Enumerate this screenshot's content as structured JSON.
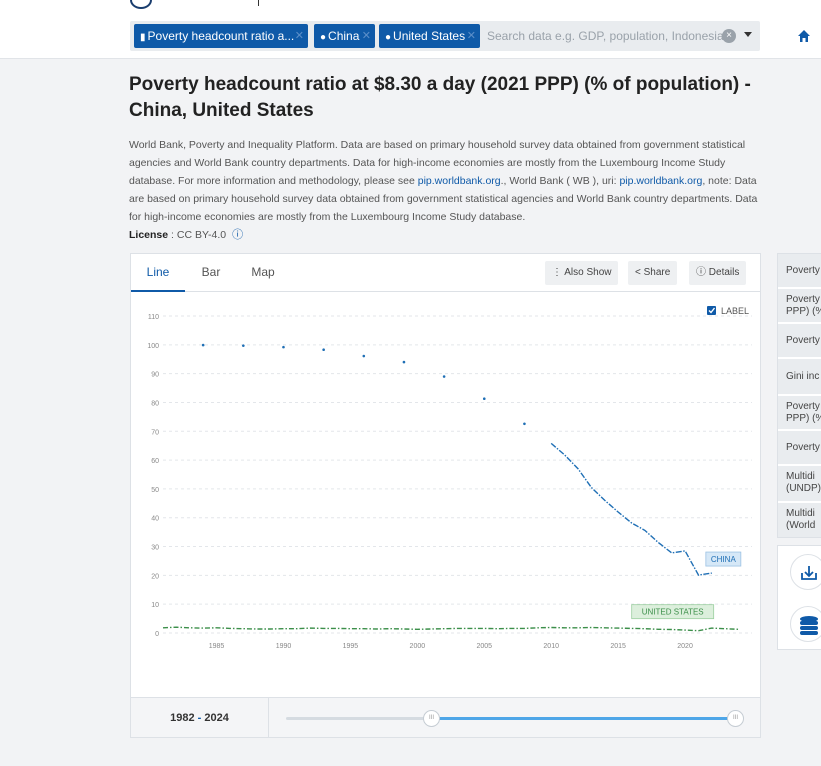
{
  "header": {
    "chips": [
      {
        "label": "Poverty headcount ratio a...",
        "icon": "bar-chart-icon"
      },
      {
        "label": "China",
        "icon": "map-pin-icon"
      },
      {
        "label": "United States",
        "icon": "map-pin-icon"
      }
    ],
    "search_placeholder": "Search data e.g. GDP, population, Indonesia",
    "clear_symbol": "×"
  },
  "page": {
    "title": "Poverty headcount ratio at $8.30 a day (2021 PPP) (% of population) - China, United States",
    "desc_1": "World Bank, Poverty and Inequality Platform. Data are based on primary household survey data obtained from government statistical agencies and World Bank country departments. Data for high-income economies are mostly from the Luxembourg Income Study database. For more information and methodology, please see ",
    "desc_link_1": "pip.worldbank.org",
    "desc_2": "., World Bank ( WB ), uri: ",
    "desc_link_2": "pip.worldbank.org",
    "desc_3": ", note: Data are based on primary household survey data obtained from government statistical agencies and World Bank country departments. Data for high-income economies are mostly from the Luxembourg Income Study database.",
    "license_label": "License",
    "license_value": " : CC BY-4.0",
    "license_info_symbol": "ⓘ"
  },
  "panel": {
    "tabs": [
      "Line",
      "Bar",
      "Map"
    ],
    "active_tab": "Line",
    "also_show": "Also Show",
    "share": "Share",
    "details": "Details",
    "label_toggle": "LABEL",
    "label_checked": true,
    "year_start": "1982",
    "year_sep": "-",
    "year_end": "2024",
    "handle_symbol": "III"
  },
  "sidebar": {
    "items": [
      "Poverty",
      "Poverty PPP) (%",
      "Poverty",
      "Gini inc",
      "Poverty PPP) (%",
      "Poverty",
      "Multidi (UNDP)",
      "Multidi (World"
    ]
  },
  "colors": {
    "brand": "#0f5aa8",
    "china": "#1f6fb5",
    "us": "#3c8f4a",
    "china_label_bg": "#d6e8f7",
    "us_label_bg": "#dcefdc"
  },
  "chart_data": {
    "type": "line",
    "title": "",
    "xlabel": "",
    "ylabel": "",
    "xlim": [
      1981,
      2025
    ],
    "ylim": [
      0,
      110
    ],
    "yticks": [
      0,
      10,
      20,
      30,
      40,
      50,
      60,
      70,
      80,
      90,
      100,
      110
    ],
    "xticks": [
      1985,
      1990,
      1995,
      2000,
      2005,
      2010,
      2015,
      2020
    ],
    "grid": true,
    "series": [
      {
        "name": "CHINA",
        "color": "#1f6fb5",
        "points": [
          [
            1984,
            99.9
          ],
          [
            1987,
            99.7
          ],
          [
            1990,
            99.2
          ],
          [
            1993,
            98.3
          ],
          [
            1996,
            96.1
          ],
          [
            1999,
            94.0
          ],
          [
            2002,
            89.0
          ],
          [
            2005,
            81.3
          ],
          [
            2008,
            72.6
          ],
          [
            2010,
            65.8
          ],
          [
            2011,
            61.8
          ],
          [
            2012,
            57.0
          ],
          [
            2013,
            50.5
          ],
          [
            2014,
            46.0
          ],
          [
            2015,
            42.0
          ],
          [
            2016,
            38.2
          ],
          [
            2017,
            35.6
          ],
          [
            2018,
            31.4
          ],
          [
            2019,
            27.8
          ],
          [
            2020,
            28.5
          ],
          [
            2021,
            20.1
          ],
          [
            2022,
            20.8
          ]
        ]
      },
      {
        "name": "UNITED STATES",
        "color": "#3c8f4a",
        "points": [
          [
            1981,
            1.8
          ],
          [
            1982,
            2.0
          ],
          [
            1983,
            1.8
          ],
          [
            1984,
            1.7
          ],
          [
            1985,
            1.8
          ],
          [
            1986,
            1.6
          ],
          [
            1987,
            1.5
          ],
          [
            1988,
            1.4
          ],
          [
            1989,
            1.4
          ],
          [
            1990,
            1.5
          ],
          [
            1991,
            1.5
          ],
          [
            1992,
            1.7
          ],
          [
            1993,
            1.6
          ],
          [
            1994,
            1.6
          ],
          [
            1995,
            1.5
          ],
          [
            1996,
            1.5
          ],
          [
            1997,
            1.4
          ],
          [
            1998,
            1.5
          ],
          [
            1999,
            1.4
          ],
          [
            2000,
            1.3
          ],
          [
            2001,
            1.4
          ],
          [
            2002,
            1.5
          ],
          [
            2003,
            1.6
          ],
          [
            2004,
            1.6
          ],
          [
            2005,
            1.6
          ],
          [
            2006,
            1.5
          ],
          [
            2007,
            1.6
          ],
          [
            2008,
            1.6
          ],
          [
            2009,
            1.8
          ],
          [
            2010,
            1.9
          ],
          [
            2011,
            1.8
          ],
          [
            2012,
            1.8
          ],
          [
            2013,
            1.9
          ],
          [
            2014,
            1.8
          ],
          [
            2015,
            1.7
          ],
          [
            2016,
            1.6
          ],
          [
            2017,
            1.5
          ],
          [
            2018,
            1.3
          ],
          [
            2019,
            1.2
          ],
          [
            2020,
            1.0
          ],
          [
            2021,
            0.8
          ],
          [
            2022,
            1.7
          ],
          [
            2023,
            1.5
          ],
          [
            2024,
            1.3
          ]
        ]
      }
    ]
  }
}
